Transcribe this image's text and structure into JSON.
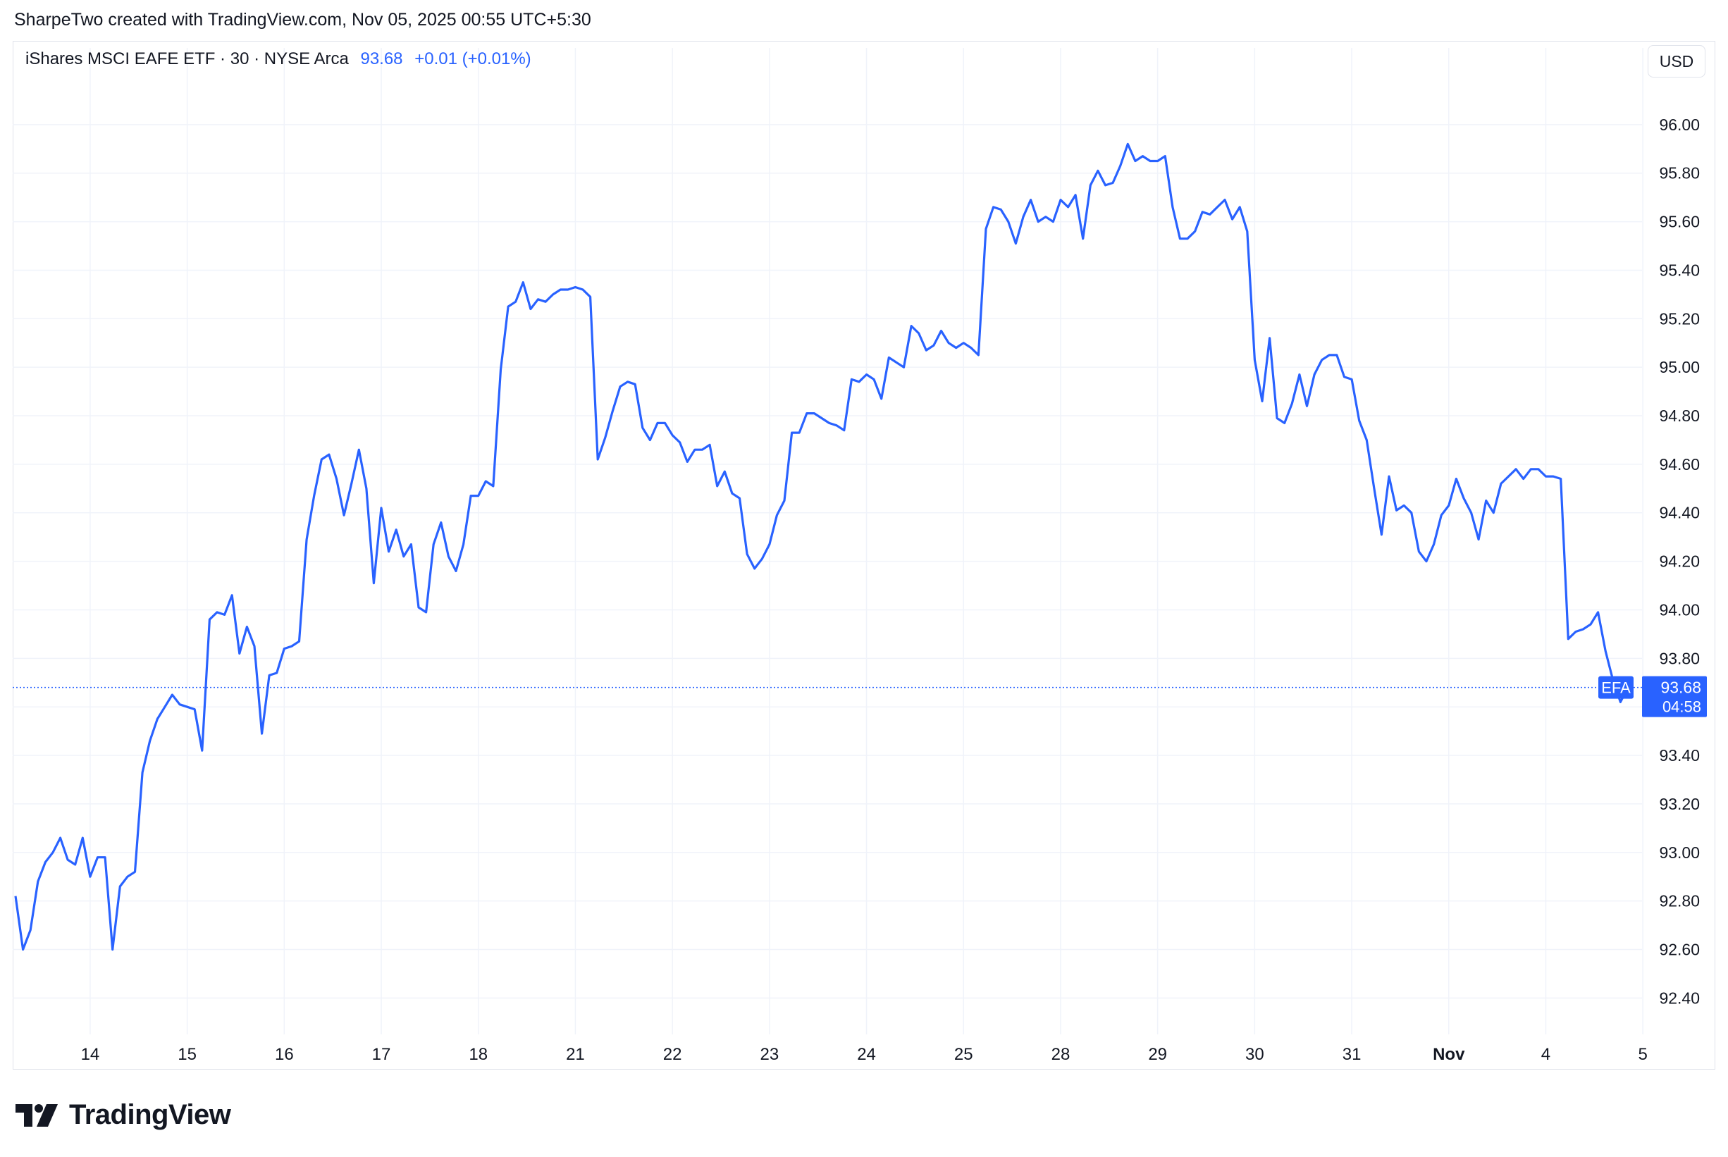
{
  "header": {
    "attribution": "SharpeTwo created with TradingView.com, Nov 05, 2025 00:55 UTC+5:30"
  },
  "legend": {
    "symbol": "iShares MSCI EAFE ETF · 30 · NYSE Arca",
    "price": "93.68",
    "change": "+0.01 (+0.01%)"
  },
  "toolbar": {
    "currency": "USD"
  },
  "price_tag": {
    "ticker": "EFA",
    "last": "93.68",
    "countdown": "04:58"
  },
  "logo": {
    "text": "TradingView",
    "icon": "tradingview-logo-icon"
  },
  "colors": {
    "line": "#2962ff",
    "grid": "#f0f3fa",
    "text": "#131722"
  },
  "chart_data": {
    "type": "line",
    "title": "",
    "xlabel": "",
    "ylabel": "",
    "ylim": [
      92.25,
      96.2
    ],
    "y_ticks": [
      "92.40",
      "92.60",
      "92.80",
      "93.00",
      "93.20",
      "93.40",
      "93.60",
      "93.80",
      "94.00",
      "94.20",
      "94.40",
      "94.60",
      "94.80",
      "95.00",
      "95.20",
      "95.40",
      "95.60",
      "95.80",
      "96.00"
    ],
    "x_ticks": [
      {
        "label": "14",
        "index": 10
      },
      {
        "label": "15",
        "index": 23
      },
      {
        "label": "16",
        "index": 36
      },
      {
        "label": "17",
        "index": 49
      },
      {
        "label": "18",
        "index": 62
      },
      {
        "label": "21",
        "index": 75
      },
      {
        "label": "22",
        "index": 88
      },
      {
        "label": "23",
        "index": 101
      },
      {
        "label": "24",
        "index": 114
      },
      {
        "label": "25",
        "index": 127
      },
      {
        "label": "28",
        "index": 140
      },
      {
        "label": "29",
        "index": 153
      },
      {
        "label": "30",
        "index": 166
      },
      {
        "label": "31",
        "index": 179
      },
      {
        "label": "Nov",
        "index": 192
      },
      {
        "label": "4",
        "index": 205
      },
      {
        "label": "5",
        "index": 218
      }
    ],
    "last_value": 93.68,
    "grid": true,
    "series": [
      {
        "name": "EFA",
        "values": [
          92.82,
          92.6,
          92.68,
          92.88,
          92.96,
          93.0,
          93.06,
          92.97,
          92.95,
          93.06,
          92.9,
          92.98,
          92.98,
          92.6,
          92.86,
          92.9,
          92.92,
          93.33,
          93.46,
          93.55,
          93.6,
          93.65,
          93.61,
          93.6,
          93.59,
          93.42,
          93.96,
          93.99,
          93.98,
          94.06,
          93.82,
          93.93,
          93.85,
          93.49,
          93.73,
          93.74,
          93.84,
          93.85,
          93.87,
          94.29,
          94.47,
          94.62,
          94.64,
          94.54,
          94.39,
          94.52,
          94.66,
          94.5,
          94.11,
          94.42,
          94.24,
          94.33,
          94.22,
          94.27,
          94.01,
          93.99,
          94.27,
          94.36,
          94.22,
          94.16,
          94.27,
          94.47,
          94.47,
          94.53,
          94.51,
          94.99,
          95.25,
          95.27,
          95.35,
          95.24,
          95.28,
          95.27,
          95.3,
          95.32,
          95.32,
          95.33,
          95.32,
          95.29,
          94.62,
          94.71,
          94.82,
          94.92,
          94.94,
          94.93,
          94.75,
          94.7,
          94.77,
          94.77,
          94.72,
          94.69,
          94.61,
          94.66,
          94.66,
          94.68,
          94.51,
          94.57,
          94.48,
          94.46,
          94.23,
          94.17,
          94.21,
          94.27,
          94.39,
          94.45,
          94.73,
          94.73,
          94.81,
          94.81,
          94.79,
          94.77,
          94.76,
          94.74,
          94.95,
          94.94,
          94.97,
          94.95,
          94.87,
          95.04,
          95.02,
          95.0,
          95.17,
          95.14,
          95.07,
          95.09,
          95.15,
          95.1,
          95.08,
          95.1,
          95.08,
          95.05,
          95.57,
          95.66,
          95.65,
          95.6,
          95.51,
          95.62,
          95.69,
          95.6,
          95.62,
          95.6,
          95.69,
          95.66,
          95.71,
          95.53,
          95.75,
          95.81,
          95.75,
          95.76,
          95.83,
          95.92,
          95.85,
          95.87,
          95.85,
          95.85,
          95.87,
          95.66,
          95.53,
          95.53,
          95.56,
          95.64,
          95.63,
          95.66,
          95.69,
          95.61,
          95.66,
          95.56,
          95.03,
          94.86,
          95.12,
          94.79,
          94.77,
          94.85,
          94.97,
          94.84,
          94.97,
          95.03,
          95.05,
          95.05,
          94.96,
          94.95,
          94.78,
          94.7,
          94.5,
          94.31,
          94.55,
          94.41,
          94.43,
          94.4,
          94.24,
          94.2,
          94.27,
          94.39,
          94.43,
          94.54,
          94.46,
          94.4,
          94.29,
          94.45,
          94.4,
          94.52,
          94.55,
          94.58,
          94.54,
          94.58,
          94.58,
          94.55,
          94.55,
          94.54,
          93.88,
          93.91,
          93.92,
          93.94,
          93.99,
          93.83,
          93.71,
          93.62,
          93.68
        ]
      }
    ]
  }
}
